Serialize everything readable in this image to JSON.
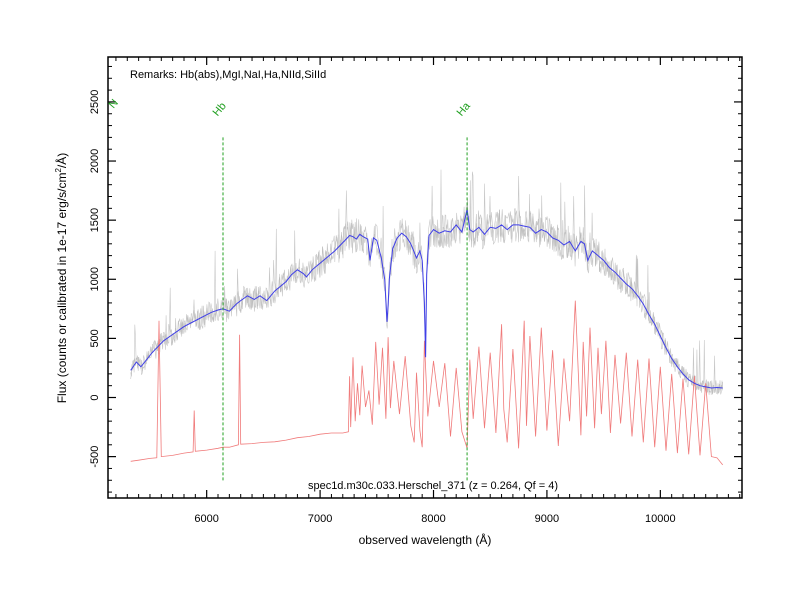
{
  "chart_data": {
    "type": "line",
    "title": "",
    "xlabel": "observed wavelength (Å)",
    "ylabel_main": "Flux (counts or calibrated in 1e-17 erg/s/cm",
    "ylabel_sup": "2",
    "ylabel_end": "/Å)",
    "xlim": [
      5130,
      10720
    ],
    "ylim": [
      -850,
      2880
    ],
    "x_ticks": [
      6000,
      7000,
      8000,
      9000,
      10000
    ],
    "y_ticks": [
      -500,
      0,
      500,
      1000,
      1500,
      2000,
      2500
    ],
    "remarks": "Remarks: Hb(abs),MgI,NaI,Ha,NIId,SiIId",
    "spectrum_id": "spec1d.m30c.033.Herschel_371 (z = 0.264, Qf = 4)",
    "lines": [
      {
        "label": "Hb",
        "x": 6144,
        "y_top": 2200
      },
      {
        "label": "Ha",
        "x": 8296,
        "y_top": 2200
      }
    ],
    "edge_line_label": "N",
    "colors": {
      "flux": "#3f3fe8",
      "raw": "#b4b4b4",
      "error": "#f07a7a",
      "lines": "#22a022"
    },
    "series": [
      {
        "role": "smoothed-flux",
        "x": [
          5330,
          5380,
          5420,
          5470,
          5520,
          5570,
          5620,
          5680,
          5740,
          5800,
          5860,
          5920,
          5980,
          6040,
          6100,
          6144,
          6200,
          6260,
          6300,
          6360,
          6420,
          6470,
          6530,
          6600,
          6650,
          6700,
          6750,
          6800,
          6850,
          6880,
          6930,
          6980,
          7030,
          7080,
          7130,
          7180,
          7230,
          7260,
          7290,
          7320,
          7350,
          7380,
          7420,
          7440,
          7470,
          7500,
          7540,
          7570,
          7590,
          7600,
          7610,
          7640,
          7680,
          7720,
          7760,
          7800,
          7850,
          7880,
          7900,
          7920,
          7930,
          7940,
          7960,
          8000,
          8050,
          8100,
          8150,
          8200,
          8250,
          8296,
          8320,
          8350,
          8400,
          8450,
          8500,
          8550,
          8600,
          8650,
          8700,
          8750,
          8800,
          8850,
          8900,
          8950,
          9000,
          9050,
          9100,
          9150,
          9200,
          9250,
          9300,
          9330,
          9360,
          9400,
          9450,
          9500,
          9550,
          9600,
          9650,
          9700,
          9750,
          9800,
          9850,
          9900,
          9950,
          10000,
          10050,
          10100,
          10150,
          10200,
          10250,
          10300,
          10350,
          10400,
          10450,
          10500,
          10550
        ],
        "y": [
          230,
          300,
          260,
          320,
          380,
          430,
          480,
          520,
          560,
          600,
          630,
          660,
          690,
          720,
          740,
          750,
          730,
          790,
          820,
          860,
          830,
          860,
          820,
          900,
          940,
          980,
          1040,
          1080,
          1050,
          1020,
          1080,
          1120,
          1160,
          1200,
          1240,
          1290,
          1340,
          1370,
          1360,
          1340,
          1380,
          1360,
          1340,
          1160,
          1350,
          1330,
          1180,
          1000,
          640,
          780,
          1000,
          1260,
          1350,
          1390,
          1360,
          1300,
          1180,
          1240,
          1160,
          800,
          340,
          1040,
          1370,
          1420,
          1390,
          1410,
          1400,
          1460,
          1400,
          1590,
          1420,
          1400,
          1440,
          1380,
          1440,
          1430,
          1460,
          1420,
          1460,
          1460,
          1450,
          1440,
          1390,
          1420,
          1400,
          1350,
          1330,
          1290,
          1320,
          1240,
          1320,
          1300,
          1160,
          1240,
          1200,
          1160,
          1100,
          1060,
          1010,
          960,
          920,
          860,
          790,
          700,
          620,
          520,
          420,
          330,
          260,
          200,
          150,
          120,
          100,
          90,
          80,
          85,
          80
        ]
      },
      {
        "role": "error-spectrum",
        "x": [
          5330,
          5400,
          5500,
          5560,
          5580,
          5600,
          5700,
          5800,
          5880,
          5890,
          5900,
          6000,
          6100,
          6144,
          6200,
          6280,
          6290,
          6300,
          6400,
          6500,
          6600,
          6700,
          6800,
          6900,
          7000,
          7100,
          7200,
          7250,
          7260,
          7270,
          7290,
          7310,
          7330,
          7350,
          7370,
          7400,
          7430,
          7460,
          7490,
          7520,
          7550,
          7580,
          7600,
          7620,
          7650,
          7700,
          7750,
          7800,
          7830,
          7850,
          7880,
          7900,
          7920,
          7950,
          8000,
          8050,
          8100,
          8150,
          8200,
          8250,
          8296,
          8320,
          8350,
          8400,
          8450,
          8500,
          8550,
          8600,
          8620,
          8650,
          8700,
          8750,
          8800,
          8820,
          8850,
          8900,
          8950,
          9000,
          9050,
          9100,
          9150,
          9200,
          9250,
          9300,
          9320,
          9350,
          9380,
          9420,
          9450,
          9480,
          9520,
          9560,
          9600,
          9650,
          9700,
          9750,
          9800,
          9850,
          9900,
          9950,
          10000,
          10050,
          10100,
          10150,
          10200,
          10250,
          10300,
          10350,
          10400,
          10450,
          10500,
          10550
        ],
        "y": [
          -540,
          -530,
          -515,
          -510,
          650,
          -500,
          -490,
          -470,
          -460,
          -110,
          -455,
          -445,
          -430,
          -420,
          -420,
          -400,
          530,
          -395,
          -390,
          -380,
          -375,
          -360,
          -340,
          -330,
          -310,
          -300,
          -300,
          -290,
          180,
          -250,
          340,
          -200,
          120,
          -150,
          270,
          -80,
          60,
          -230,
          470,
          -60,
          420,
          -180,
          510,
          -90,
          310,
          -140,
          350,
          -240,
          -380,
          210,
          -280,
          -420,
          480,
          -160,
          310,
          -80,
          290,
          -330,
          250,
          -290,
          -430,
          320,
          -180,
          430,
          -260,
          380,
          -300,
          620,
          -100,
          -380,
          410,
          -430,
          650,
          -240,
          520,
          -330,
          590,
          -280,
          400,
          -410,
          330,
          -200,
          820,
          -320,
          470,
          -160,
          590,
          -260,
          420,
          -140,
          480,
          -300,
          360,
          -220,
          380,
          -330,
          320,
          -380,
          330,
          -420,
          260,
          -450,
          200,
          -470,
          160,
          -480,
          180,
          -490,
          120,
          -500,
          -510,
          -570
        ]
      }
    ]
  }
}
